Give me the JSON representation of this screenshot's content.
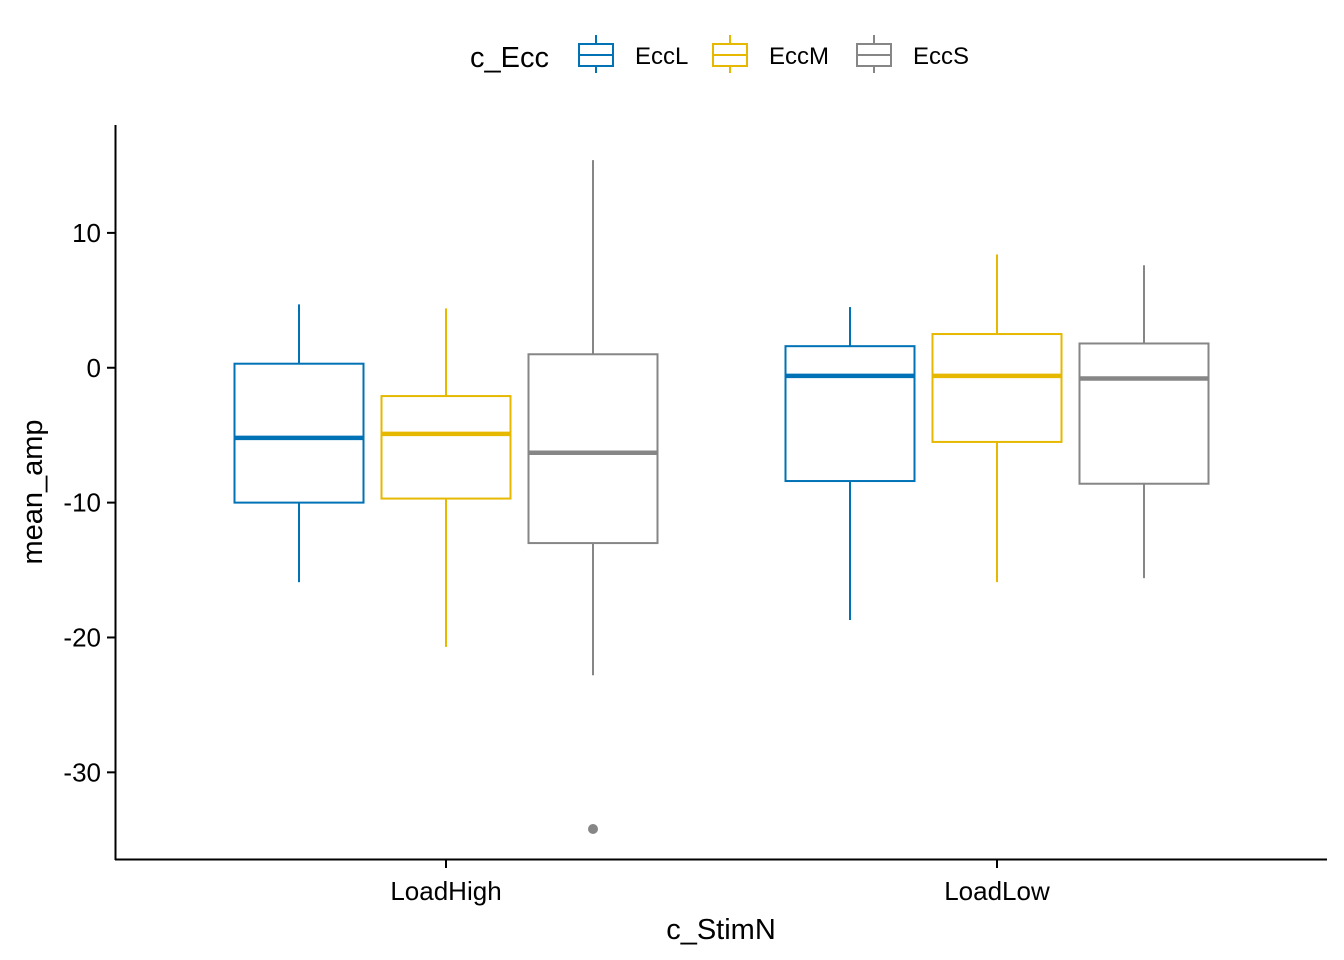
{
  "chart_data": {
    "type": "boxplot",
    "xlabel": "c_StimN",
    "ylabel": "mean_amp",
    "categories": [
      "LoadHigh",
      "LoadLow"
    ],
    "ylim": [
      -36.5,
      18
    ],
    "yticks": [
      -30,
      -20,
      -10,
      0,
      10
    ],
    "grid": false,
    "legend": {
      "title": "c_Ecc",
      "position": "top"
    },
    "series": [
      {
        "name": "EccL",
        "color": "#0072B5",
        "boxes": [
          {
            "category": "LoadHigh",
            "whisker_low": -15.9,
            "q1": -10.0,
            "median": -5.2,
            "q3": 0.3,
            "whisker_high": 4.7,
            "outliers": []
          },
          {
            "category": "LoadLow",
            "whisker_low": -18.7,
            "q1": -8.4,
            "median": -0.6,
            "q3": 1.6,
            "whisker_high": 4.5,
            "outliers": []
          }
        ]
      },
      {
        "name": "EccM",
        "color": "#E7B800",
        "boxes": [
          {
            "category": "LoadHigh",
            "whisker_low": -20.7,
            "q1": -9.7,
            "median": -4.9,
            "q3": -2.1,
            "whisker_high": 4.4,
            "outliers": []
          },
          {
            "category": "LoadLow",
            "whisker_low": -15.9,
            "q1": -5.5,
            "median": -0.6,
            "q3": 2.5,
            "whisker_high": 8.4,
            "outliers": []
          }
        ]
      },
      {
        "name": "EccS",
        "color": "#868686",
        "boxes": [
          {
            "category": "LoadHigh",
            "whisker_low": -22.8,
            "q1": -13.0,
            "median": -6.3,
            "q3": 1.0,
            "whisker_high": 15.4,
            "outliers": [
              -34.2
            ]
          },
          {
            "category": "LoadLow",
            "whisker_low": -15.6,
            "q1": -8.6,
            "median": -0.8,
            "q3": 1.8,
            "whisker_high": 7.6,
            "outliers": []
          }
        ]
      }
    ]
  }
}
